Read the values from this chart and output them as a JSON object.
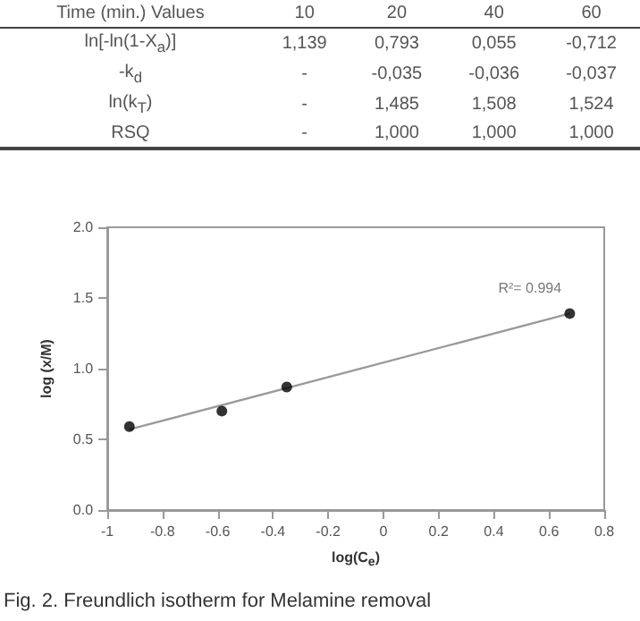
{
  "chart_data": [
    {
      "type": "other",
      "annotations": [
        "Time (min.) Values",
        "10",
        "20",
        "40",
        "60",
        "ln[-ln(1-X$_{a}$)]",
        "1,139",
        "0,793",
        "0,055",
        "-0,712",
        "-k$_{d}$",
        "-",
        "-0,035",
        "-0,036",
        "-0,037",
        "ln(k$_{T}$)",
        "-",
        "1,485",
        "1,508",
        "1,524",
        "RSQ",
        "-",
        "1,000",
        "1,000",
        "1,000"
      ]
    },
    {
      "type": "scatter",
      "xlabel": "log(C$_{e}$)",
      "ylabel": "log (x/M)",
      "xlim": [
        -1,
        0.8
      ],
      "xticks": [
        -1,
        -0.8,
        -0.6,
        -0.4,
        -0.2,
        0,
        0.2,
        0.4,
        0.6,
        0.8
      ],
      "ylim": [
        0,
        2
      ],
      "yticks": [
        {
          "value": 0,
          "label": "0.0"
        },
        {
          "value": 0.5,
          "label": "0.5"
        },
        {
          "value": 1,
          "label": "1.0"
        },
        {
          "value": 1.5,
          "label": "1.5"
        },
        {
          "value": 2,
          "label": "2.0"
        }
      ],
      "grid": false,
      "marker": "circle",
      "series": [
        {
          "type": "scatter",
          "color": "#000000",
          "x": [
            -0.92,
            -0.585,
            -0.35,
            0.675
          ],
          "values": [
            0.59,
            0.7,
            0.87,
            1.39
          ]
        },
        {
          "type": "line",
          "color": "#999999",
          "marker": "none",
          "line_style": "solid",
          "x": [
            -0.92,
            0.675
          ],
          "values": [
            0.57,
            1.39
          ]
        }
      ],
      "annotations": [
        "R²= 0.994",
        "Fig. 2. Freundlich isotherm for Melamine removal"
      ]
    }
  ]
}
